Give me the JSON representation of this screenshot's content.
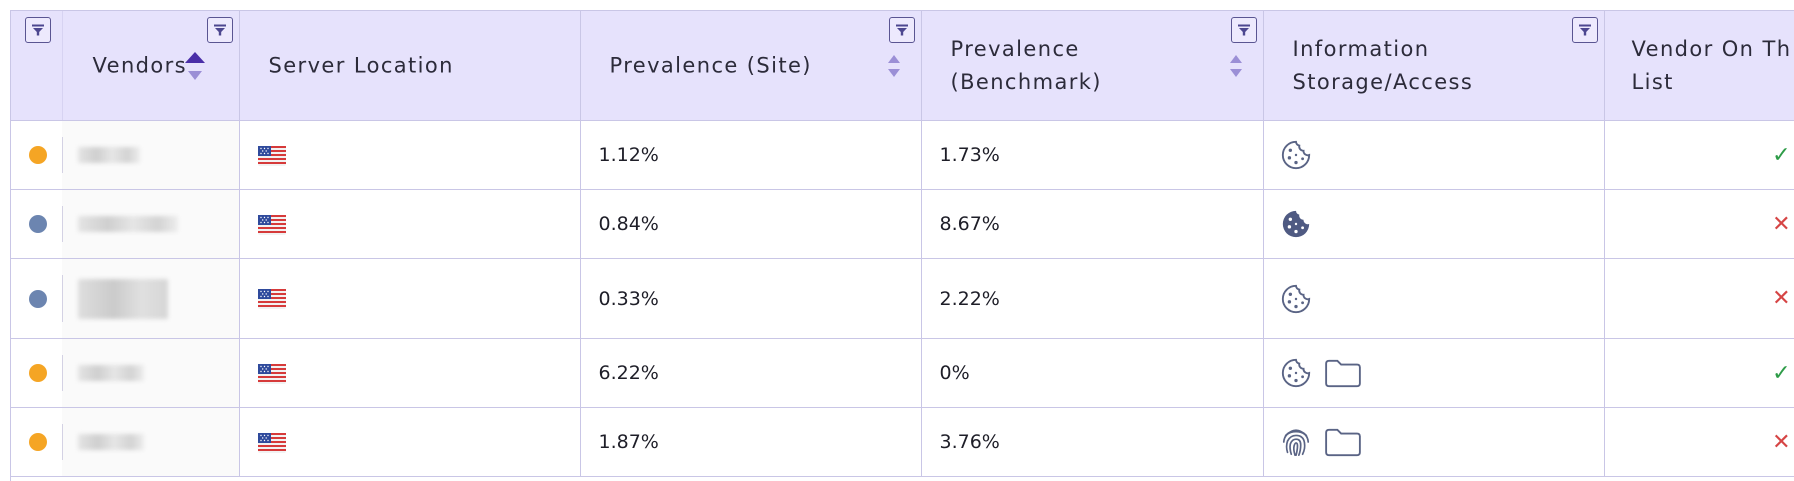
{
  "table": {
    "headers": {
      "vendors": "Vendors",
      "server_location": "Server Location",
      "prevalence_site": "Prevalence (Site)",
      "prevalence_benchmark": "Prevalence\n(Benchmark)",
      "information_storage": "Information\nStorage/Access",
      "vendor_on_list": "Vendor On Th\nList"
    },
    "sort": {
      "column": "vendors",
      "direction": "ascending"
    },
    "rows": [
      {
        "status_color": "#f5a524",
        "location_flag": "us-flag-icon",
        "prevalence_site": "1.12%",
        "prevalence_benchmark": "1.73%",
        "storage_icons": [
          "cookie-outline-icon"
        ],
        "on_list": "✓",
        "on_list_color": "#2e9c48"
      },
      {
        "status_color": "#6c85b0",
        "location_flag": "us-flag-icon",
        "prevalence_site": "0.84%",
        "prevalence_benchmark": "8.67%",
        "storage_icons": [
          "cookie-filled-icon"
        ],
        "on_list": "✕",
        "on_list_color": "#d64545"
      },
      {
        "status_color": "#6c85b0",
        "location_flag": "us-flag-icon",
        "prevalence_site": "0.33%",
        "prevalence_benchmark": "2.22%",
        "storage_icons": [
          "cookie-outline-icon"
        ],
        "on_list": "✕",
        "on_list_color": "#d64545"
      },
      {
        "status_color": "#f5a524",
        "location_flag": "us-flag-icon",
        "prevalence_site": "6.22%",
        "prevalence_benchmark": "0%",
        "storage_icons": [
          "cookie-outline-icon",
          "folder-icon"
        ],
        "on_list": "✓",
        "on_list_color": "#2e9c48"
      },
      {
        "status_color": "#f5a524",
        "location_flag": "us-flag-icon",
        "prevalence_site": "1.87%",
        "prevalence_benchmark": "3.76%",
        "storage_icons": [
          "fingerprint-icon",
          "folder-icon"
        ],
        "on_list": "✕",
        "on_list_color": "#d64545"
      }
    ]
  },
  "colors": {
    "header_bg": "#e6e2fc",
    "grid_line": "#c9c6e6",
    "accent": "#5a5592",
    "sort_active": "#4a2ea8",
    "icon": "#5a6485"
  }
}
